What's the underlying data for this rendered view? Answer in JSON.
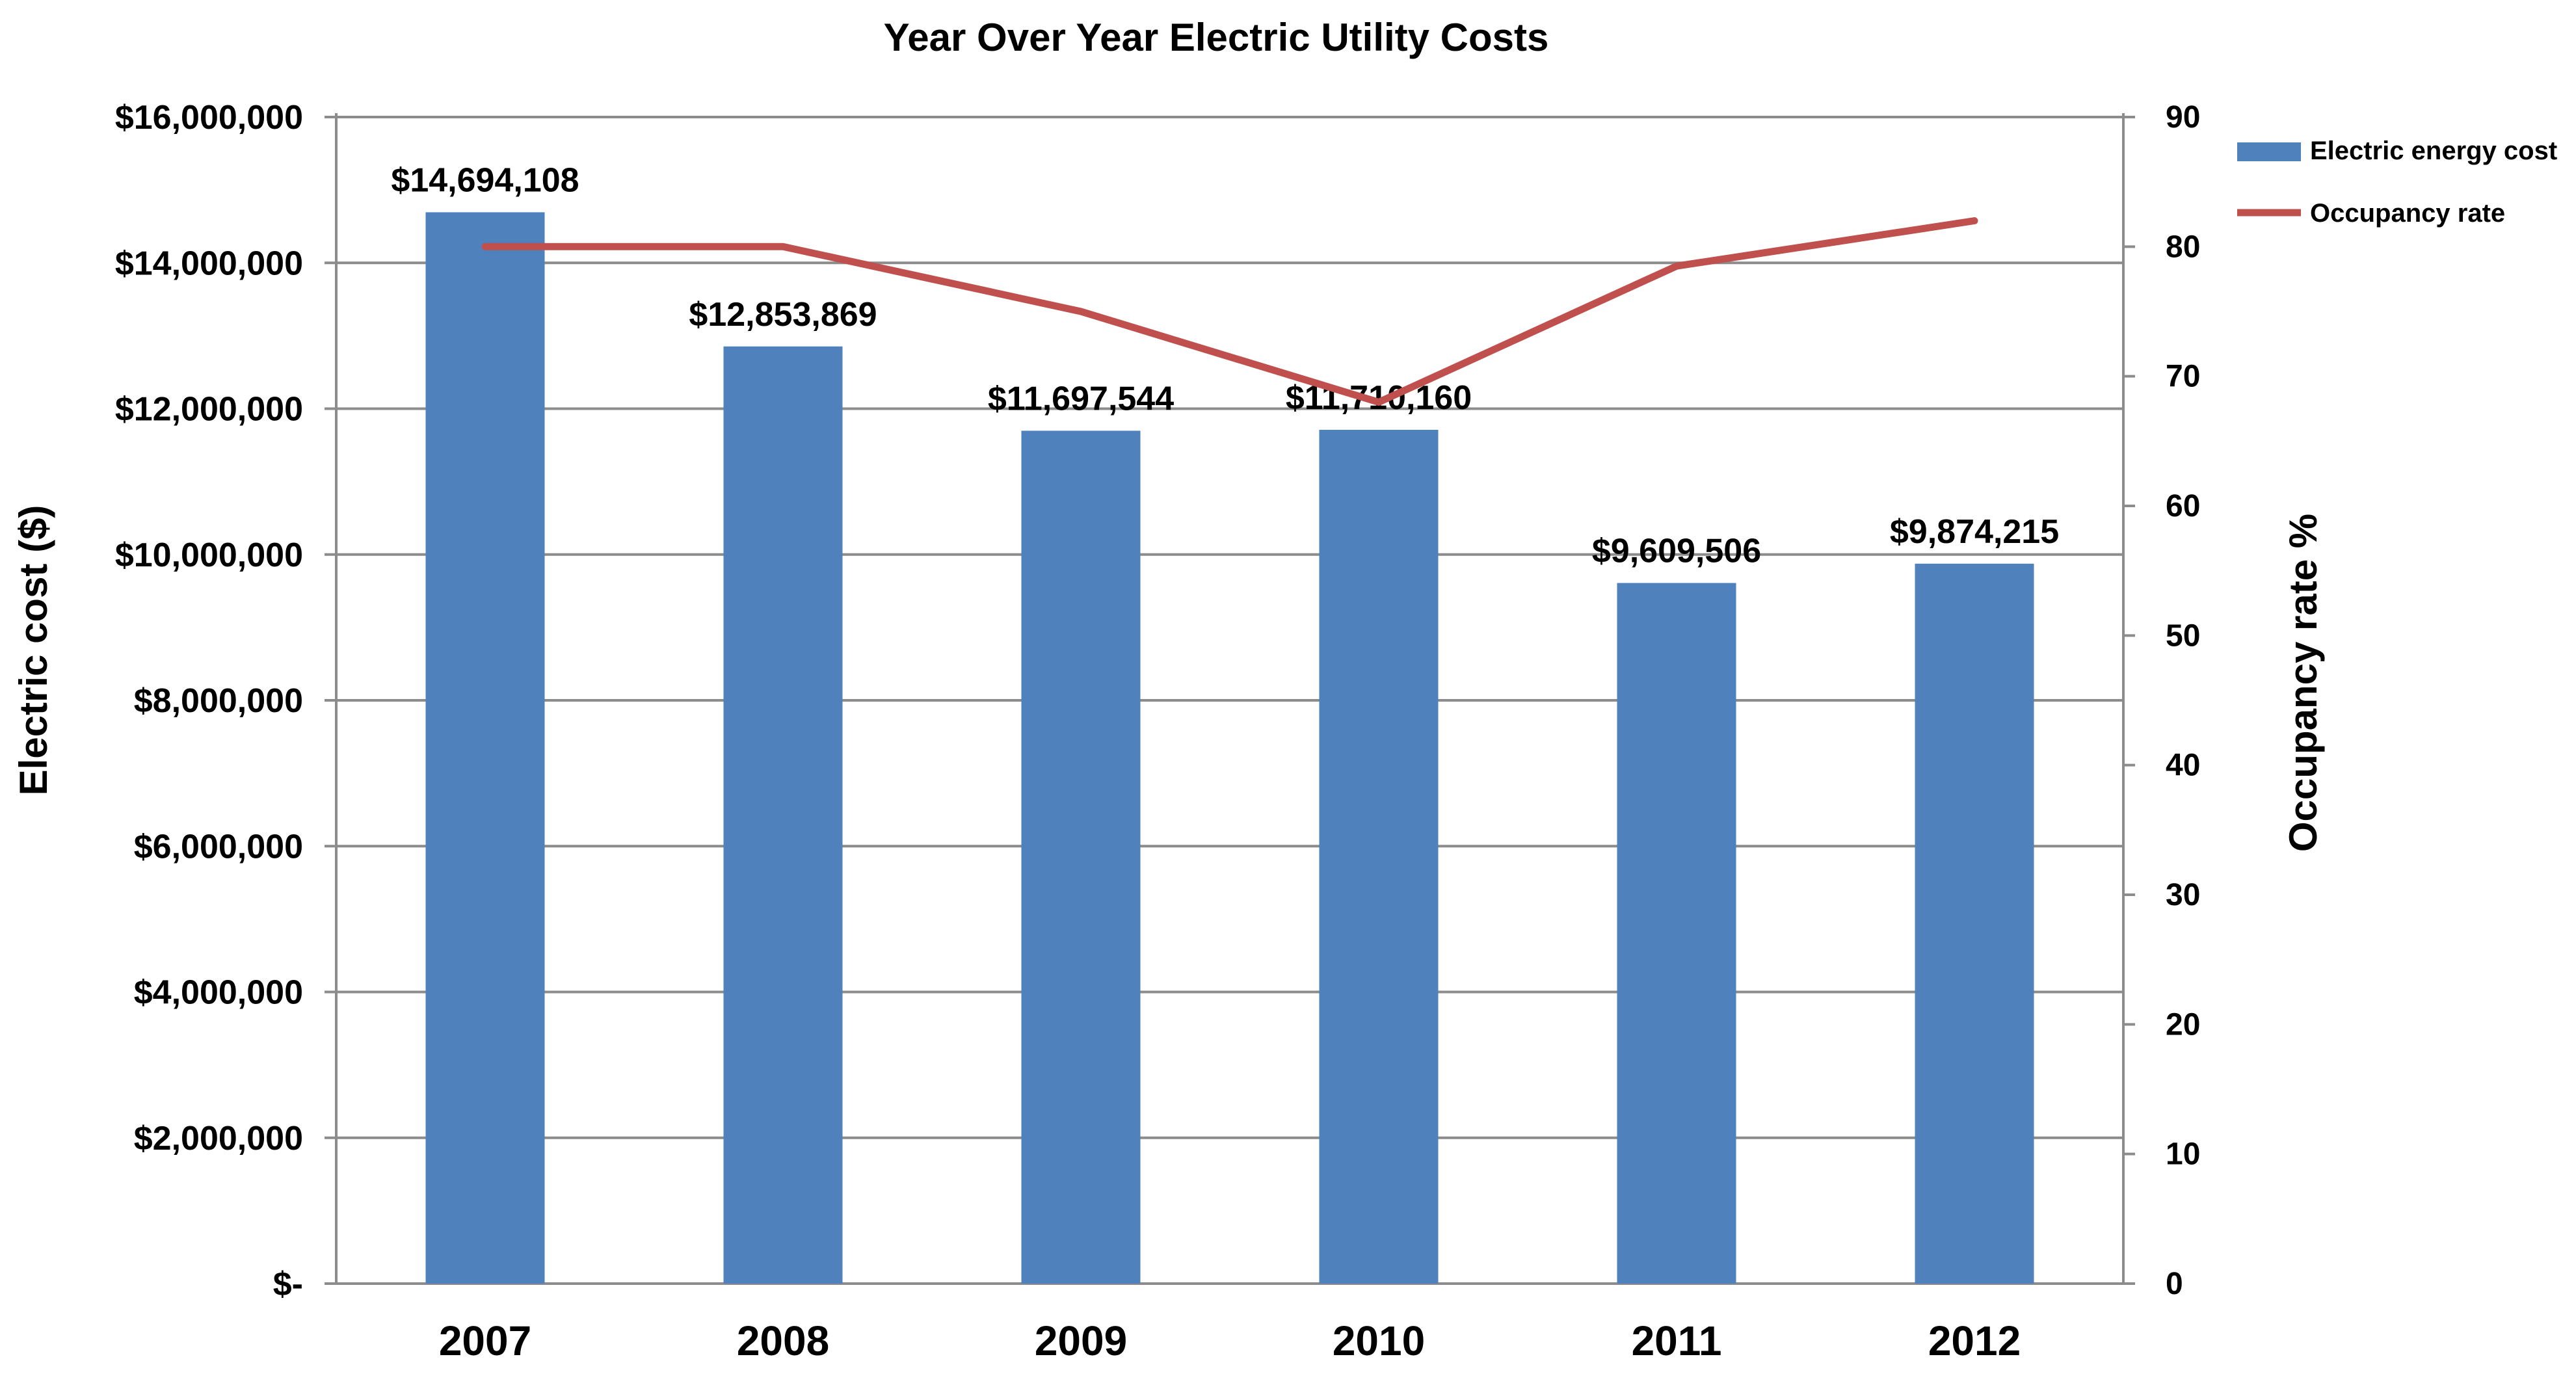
{
  "chart_data": {
    "type": "bar",
    "title": "Year Over Year Electric Utility Costs",
    "categories": [
      "2007",
      "2008",
      "2009",
      "2010",
      "2011",
      "2012"
    ],
    "series": [
      {
        "name": "Electric energy cost",
        "type": "bar",
        "axis": "left",
        "color": "#4F81BD",
        "values": [
          14694108,
          12853869,
          11697544,
          11710160,
          9609506,
          9874215
        ],
        "labels": [
          "$14,694,108",
          "$12,853,869",
          "$11,697,544",
          "$11,710,160",
          "$9,609,506",
          "$9,874,215"
        ]
      },
      {
        "name": "Occupancy rate",
        "type": "line",
        "axis": "right",
        "color": "#C0504D",
        "values": [
          80,
          80,
          75,
          68,
          78.5,
          82
        ]
      }
    ],
    "ylabel": "Electric cost ($)",
    "y2label": "Occupancy rate %",
    "ylim": [
      0,
      16000000
    ],
    "y2lim": [
      0,
      90
    ],
    "yticks": [
      "$-",
      "$2,000,000",
      "$4,000,000",
      "$6,000,000",
      "$8,000,000",
      "$10,000,000",
      "$12,000,000",
      "$14,000,000",
      "$16,000,000"
    ],
    "y2ticks": [
      "0",
      "10",
      "20",
      "30",
      "40",
      "50",
      "60",
      "70",
      "80",
      "90"
    ],
    "grid": true,
    "legend": "top-right"
  }
}
